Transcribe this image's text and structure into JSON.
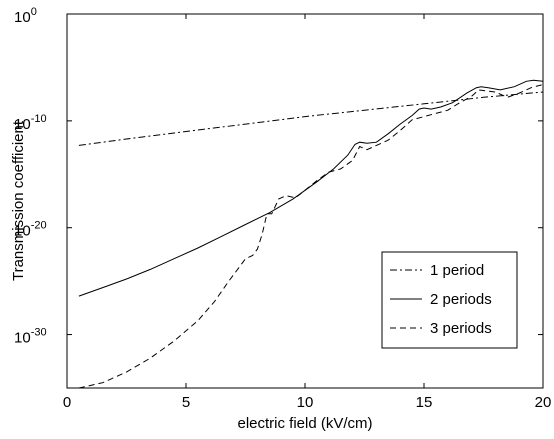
{
  "chart_data": {
    "type": "line",
    "title": "",
    "xlabel": "electric field (kV/cm)",
    "ylabel": "Transmission coefficient",
    "xlim": [
      0,
      20
    ],
    "ylim_log10": [
      -35,
      0
    ],
    "yscale": "log",
    "grid": false,
    "legend_position": "bottom-right",
    "x_ticks": [
      "0",
      "5",
      "10",
      "15",
      "20"
    ],
    "y_ticks": [
      {
        "base": "10",
        "exponent": "0"
      },
      {
        "base": "10",
        "exponent": "-10"
      },
      {
        "base": "10",
        "exponent": "-20"
      },
      {
        "base": "10",
        "exponent": "-30"
      }
    ],
    "series": [
      {
        "name": "1 period",
        "style": "dashdot",
        "x": [
          0.5,
          2.5,
          5,
          7.5,
          10,
          12.5,
          15,
          17.5,
          20
        ],
        "log10_y": [
          -12.3,
          -11.7,
          -11.0,
          -10.3,
          -9.6,
          -9.0,
          -8.4,
          -7.8,
          -7.3
        ]
      },
      {
        "name": "2 periods",
        "style": "solid",
        "x": [
          0.5,
          1.5,
          2.5,
          3.5,
          4.5,
          5.5,
          6.5,
          7.5,
          8.5,
          9.5,
          10.5,
          11.2,
          11.8,
          12.1,
          12.3,
          12.6,
          13.0,
          13.5,
          14.0,
          14.5,
          14.8,
          15.0,
          15.3,
          15.7,
          16.2,
          16.8,
          17.2,
          17.4,
          17.7,
          18.2,
          18.8,
          19.3,
          19.6,
          20.0
        ],
        "log10_y": [
          -26.4,
          -25.6,
          -24.8,
          -23.9,
          -22.9,
          -21.9,
          -20.8,
          -19.7,
          -18.6,
          -17.3,
          -15.7,
          -14.5,
          -13.2,
          -12.2,
          -12.0,
          -12.1,
          -12.0,
          -11.2,
          -10.3,
          -9.5,
          -8.9,
          -8.8,
          -8.9,
          -8.7,
          -8.3,
          -7.4,
          -6.9,
          -6.8,
          -6.9,
          -7.1,
          -6.8,
          -6.3,
          -6.2,
          -6.3
        ]
      },
      {
        "name": "3 periods",
        "style": "dashed",
        "x": [
          0.5,
          1.5,
          2.5,
          3.5,
          4.5,
          5.5,
          6.2,
          6.8,
          7.2,
          7.5,
          7.8,
          8.0,
          8.2,
          8.4,
          8.6,
          8.9,
          9.2,
          9.6,
          10.0,
          10.5,
          11.0,
          11.5,
          12.0,
          12.3,
          12.6,
          13.0,
          13.5,
          14.0,
          14.5,
          15.0,
          15.5,
          16.0,
          16.5,
          17.0,
          17.3,
          17.6,
          18.0,
          18.5,
          19.0,
          19.5,
          20.0
        ],
        "log10_y": [
          -35.0,
          -34.5,
          -33.5,
          -32.2,
          -30.6,
          -28.7,
          -26.9,
          -25.0,
          -23.8,
          -22.9,
          -22.6,
          -22.0,
          -20.6,
          -18.7,
          -18.7,
          -17.3,
          -17.0,
          -17.2,
          -16.5,
          -15.6,
          -14.8,
          -14.5,
          -13.7,
          -12.4,
          -12.7,
          -12.3,
          -11.8,
          -10.9,
          -9.9,
          -9.6,
          -9.3,
          -9.0,
          -8.3,
          -7.7,
          -7.1,
          -7.2,
          -7.3,
          -7.8,
          -7.4,
          -6.9,
          -6.6
        ]
      }
    ]
  }
}
